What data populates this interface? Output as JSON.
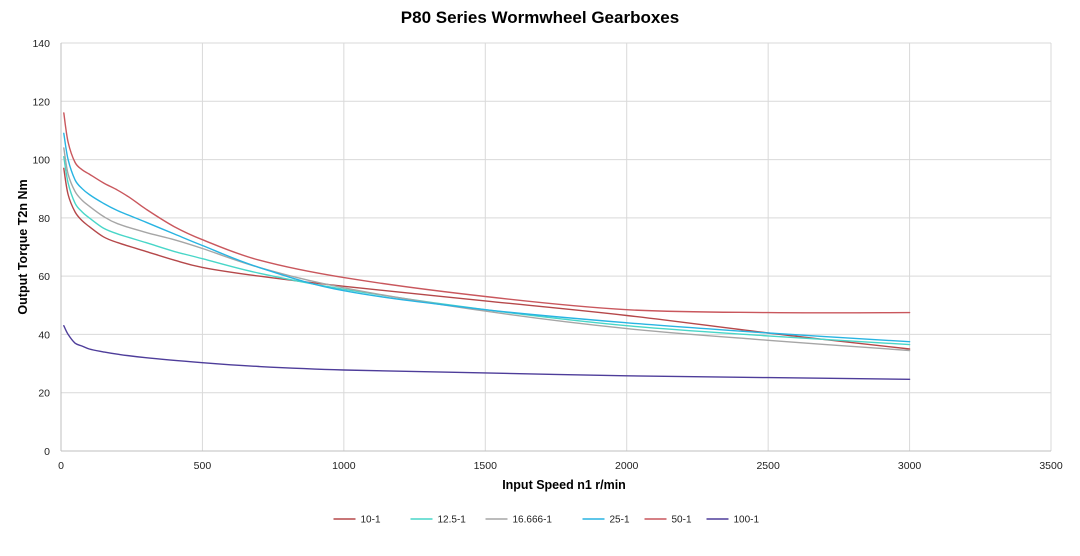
{
  "chart_data": {
    "type": "line",
    "title": "P80 Series Wormwheel Gearboxes",
    "xlabel": "Input Speed n1 r/min",
    "ylabel": "Output Torque T2n Nm",
    "xlim": [
      0,
      3500
    ],
    "ylim": [
      0,
      140
    ],
    "xticks": [
      0,
      500,
      1000,
      1500,
      2000,
      2500,
      3000,
      3500
    ],
    "yticks": [
      0,
      20,
      40,
      60,
      80,
      100,
      120,
      140
    ],
    "grid": true,
    "legend_position": "bottom",
    "series": [
      {
        "name": "10-1",
        "color": "#b5484a",
        "x": [
          10,
          25,
          50,
          75,
          100,
          150,
          200,
          300,
          400,
          500,
          700,
          1000,
          1500,
          2000,
          2500,
          3000
        ],
        "y": [
          97,
          88,
          82,
          79,
          77,
          73.5,
          71.5,
          68.5,
          65.5,
          63,
          60,
          56.5,
          51.5,
          46.5,
          40.5,
          35
        ]
      },
      {
        "name": "12.5-1",
        "color": "#48d6c8",
        "x": [
          10,
          25,
          50,
          75,
          100,
          150,
          200,
          300,
          400,
          500,
          700,
          1000,
          1500,
          2000,
          2500,
          3000
        ],
        "y": [
          101,
          92,
          85,
          82,
          80,
          76.5,
          74.5,
          71.5,
          68.5,
          66,
          61,
          55.5,
          48.5,
          43,
          39.5,
          36.5
        ]
      },
      {
        "name": "16.666-1",
        "color": "#a6a6a6",
        "x": [
          10,
          25,
          50,
          75,
          100,
          150,
          200,
          300,
          400,
          500,
          700,
          1000,
          1500,
          2000,
          2500,
          3000
        ],
        "y": [
          104,
          95,
          89,
          86,
          84,
          80.5,
          78,
          75,
          72.5,
          69.5,
          63,
          56,
          48,
          42,
          38,
          34.5
        ]
      },
      {
        "name": "25-1",
        "color": "#28b4e2",
        "x": [
          10,
          25,
          50,
          75,
          100,
          150,
          200,
          300,
          400,
          500,
          700,
          1000,
          1500,
          2000,
          2500,
          3000
        ],
        "y": [
          109,
          100,
          93,
          90,
          88,
          85,
          82.5,
          78.5,
          74.5,
          70.5,
          63,
          55,
          48.5,
          44,
          40.5,
          37.5
        ]
      },
      {
        "name": "50-1",
        "color": "#c9575d",
        "x": [
          10,
          25,
          50,
          75,
          100,
          150,
          200,
          250,
          300,
          400,
          500,
          700,
          1000,
          1500,
          2000,
          2500,
          3000
        ],
        "y": [
          116,
          106,
          99,
          96.5,
          95,
          92,
          89.5,
          86.5,
          83,
          77,
          72.5,
          65.5,
          59.5,
          53,
          48.5,
          47.5,
          47.5
        ]
      },
      {
        "name": "100-1",
        "color": "#4e3d9a",
        "x": [
          10,
          25,
          50,
          75,
          100,
          150,
          200,
          300,
          500,
          700,
          1000,
          1500,
          2000,
          2500,
          3000
        ],
        "y": [
          43,
          40,
          37,
          36,
          35,
          34,
          33.2,
          32,
          30.3,
          29,
          27.8,
          26.8,
          25.8,
          25.2,
          24.6
        ]
      }
    ]
  }
}
